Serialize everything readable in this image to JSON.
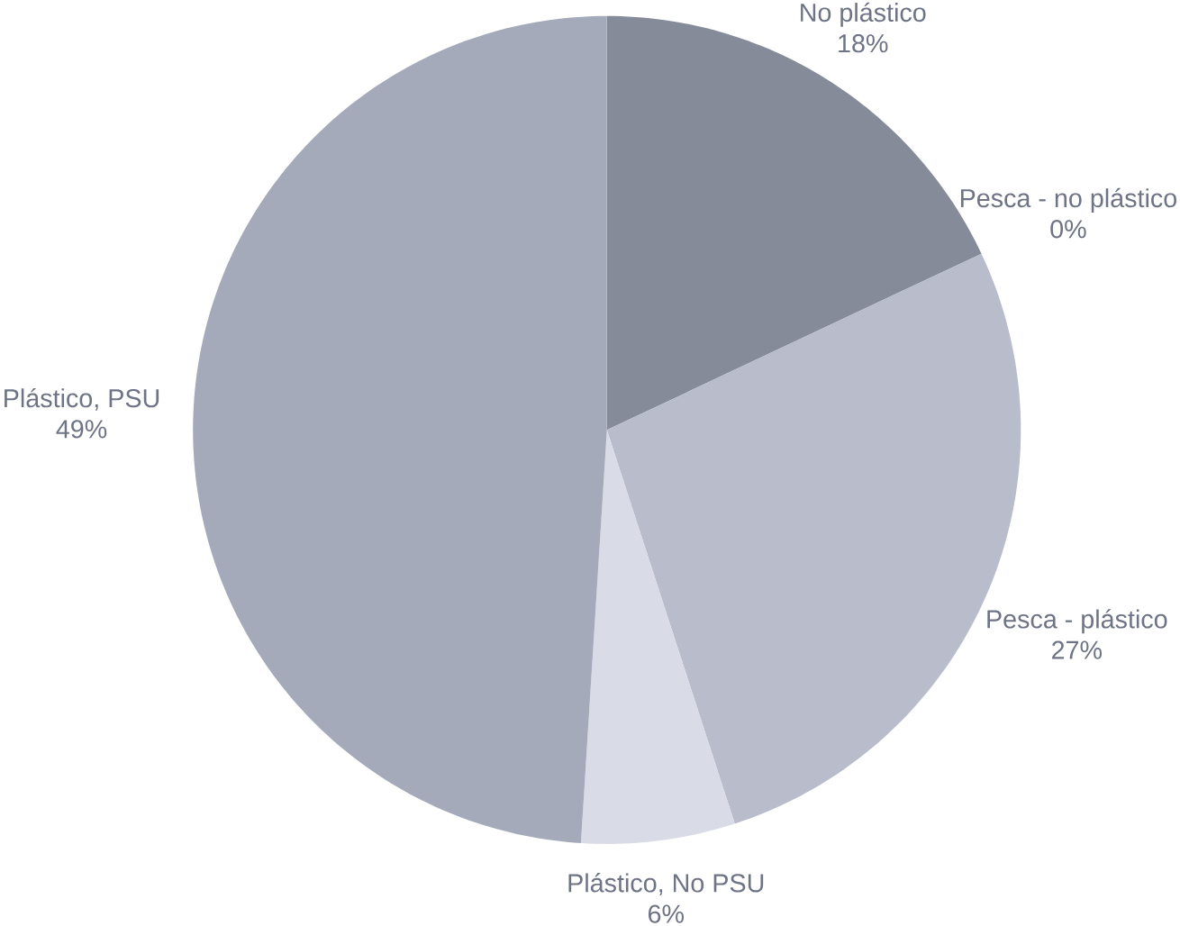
{
  "chart_data": {
    "type": "pie",
    "categories": [
      "No plástico",
      "Pesca - no plástico",
      "Pesca - plástico",
      "Plástico, No PSU",
      "Plástico, PSU"
    ],
    "values": [
      18,
      0,
      27,
      6,
      49
    ],
    "value_labels": [
      "18%",
      "0%",
      "27%",
      "6%",
      "49%"
    ],
    "colors": [
      "#858b99",
      "#c9ccd6",
      "#b9bdcb",
      "#d9dce6",
      "#a5aabb"
    ]
  }
}
